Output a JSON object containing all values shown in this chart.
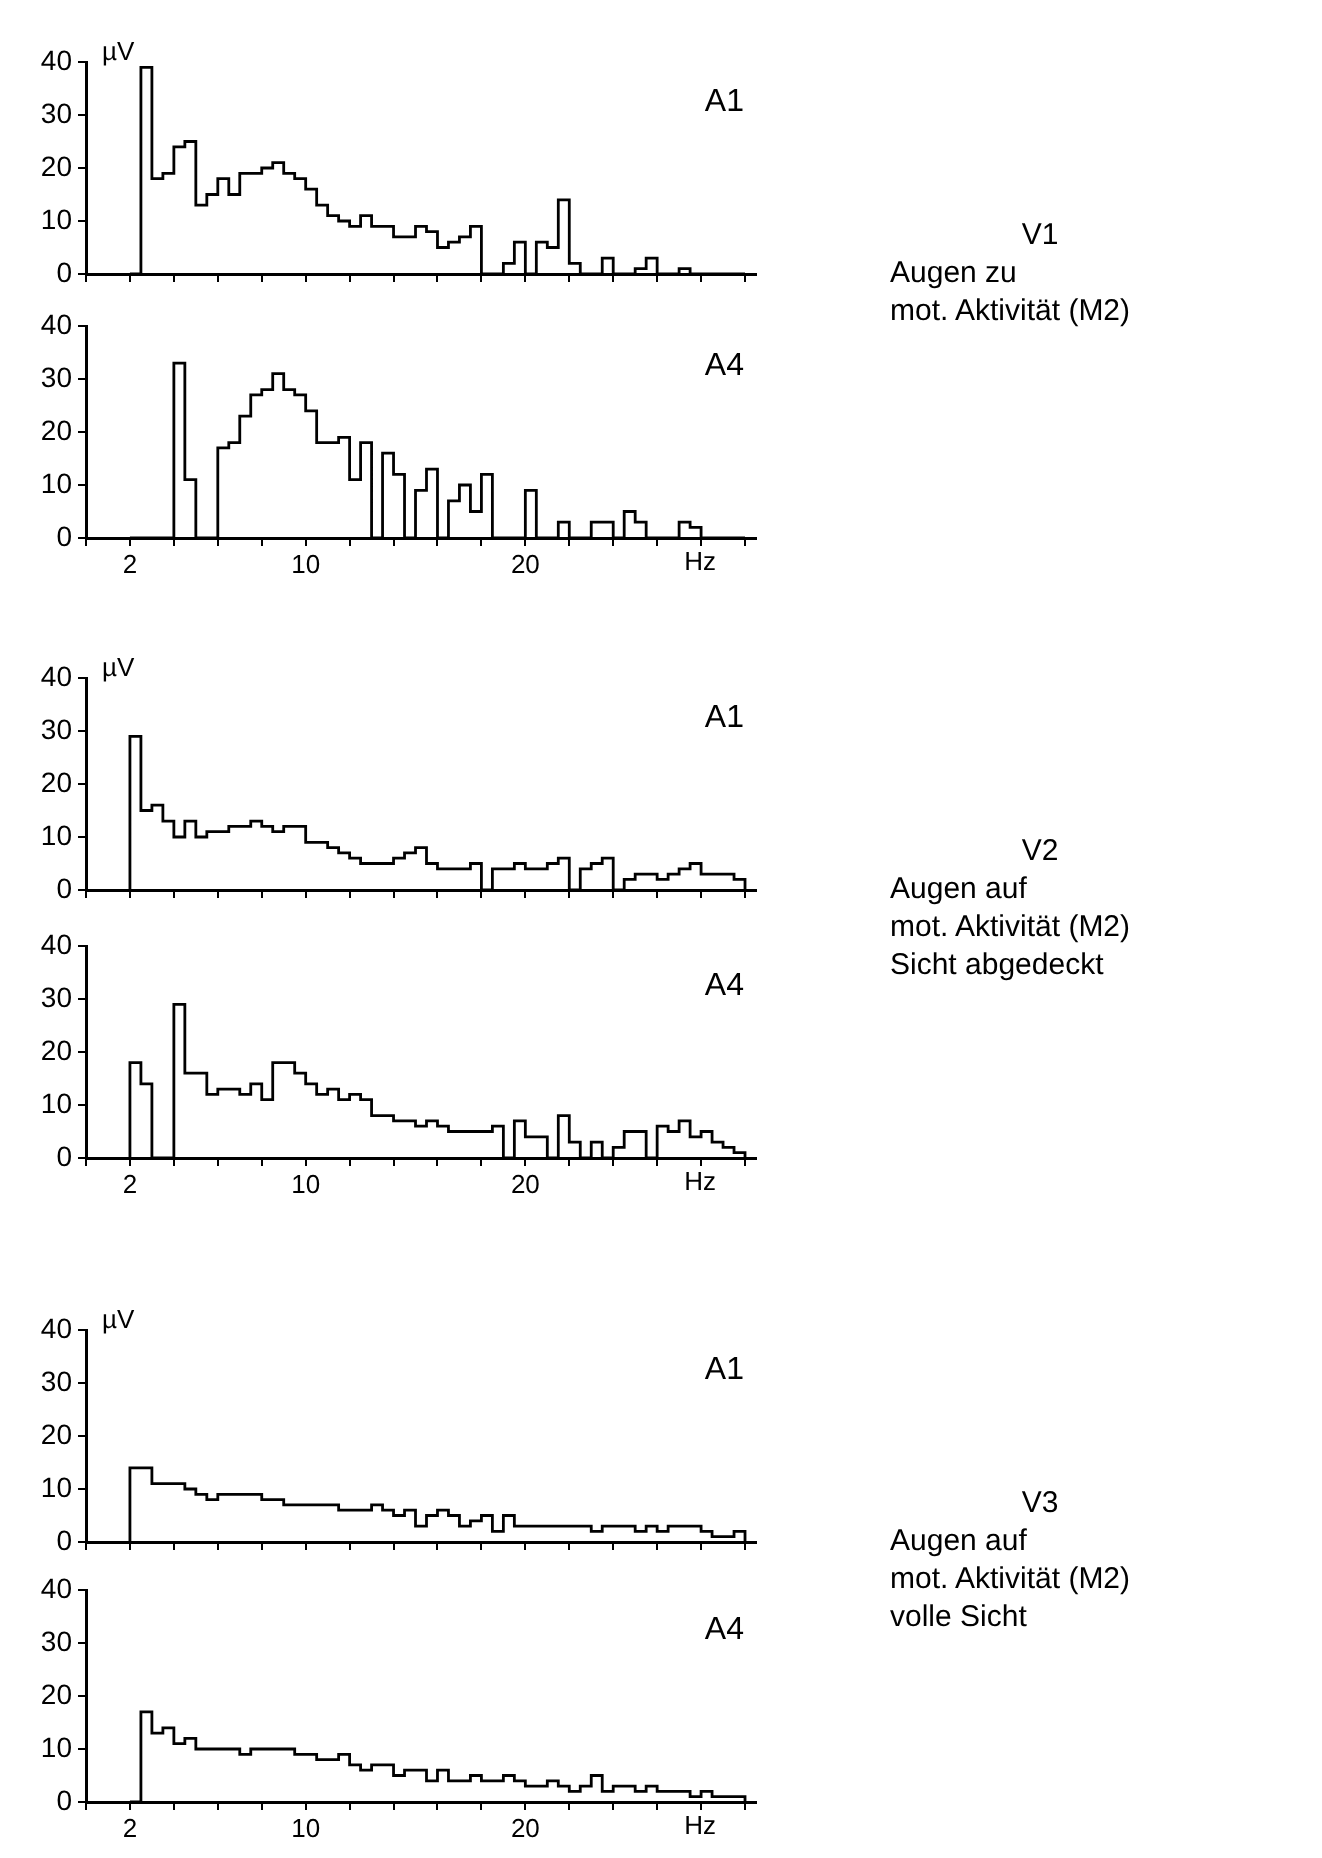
{
  "chart_data": [
    {
      "type": "histogram",
      "title": "A1",
      "ylabel": "µV",
      "annotations": [
        "V1",
        "Augen zu",
        "mot. Aktivität (M2)"
      ],
      "color": "#000000",
      "tick_labels": "y",
      "xlim": [
        0,
        30.5
      ],
      "ylim": [
        0,
        40
      ],
      "yticks": [
        0,
        10,
        20,
        30,
        40
      ],
      "xticks": [
        {
          "value": 0,
          "label": null
        },
        2,
        {
          "value": 4,
          "label": null
        },
        {
          "value": 6,
          "label": null
        },
        {
          "value": 8,
          "label": null
        },
        10,
        {
          "value": 12,
          "label": null
        },
        {
          "value": 14,
          "label": null
        },
        {
          "value": 16,
          "label": null
        },
        {
          "value": 18,
          "label": null
        },
        20,
        {
          "value": 22,
          "label": null
        },
        {
          "value": 24,
          "label": null
        },
        {
          "value": 26,
          "label": null
        },
        {
          "value": 28,
          "label": null
        },
        {
          "value": 30,
          "label": null
        }
      ],
      "bins": [
        2,
        2.5,
        3,
        3.5,
        4,
        4.5,
        5,
        5.5,
        6,
        6.5,
        7,
        7.5,
        8,
        8.5,
        9,
        9.5,
        10,
        10.5,
        11,
        11.5,
        12,
        12.5,
        13,
        13.5,
        14,
        14.5,
        15,
        15.5,
        16,
        16.5,
        17,
        17.5,
        18,
        18.5,
        19,
        19.5,
        20,
        20.5,
        21,
        21.5,
        22,
        22.5,
        23,
        23.5,
        24,
        24.5,
        25,
        25.5,
        26,
        26.5,
        27,
        27.5,
        28,
        28.5,
        29,
        29.5,
        30
      ],
      "values": [
        0,
        39,
        18,
        19,
        24,
        25,
        13,
        15,
        18,
        15,
        19,
        19,
        20,
        21,
        19,
        18,
        16,
        13,
        11,
        10,
        9,
        11,
        9,
        9,
        7,
        7,
        9,
        8,
        5,
        6,
        7,
        9,
        0,
        0,
        2,
        6,
        0,
        6,
        5,
        14,
        2,
        0,
        0,
        3,
        0,
        0,
        1,
        3,
        0,
        0,
        1,
        0,
        0,
        0,
        0,
        0
      ]
    },
    {
      "type": "histogram",
      "title": "A4",
      "xlabel": "Hz",
      "color": "#000000",
      "xlim": [
        0,
        30.5
      ],
      "ylim": [
        0,
        40
      ],
      "yticks": [
        0,
        10,
        20,
        30,
        40
      ],
      "xticks": [
        {
          "value": 0,
          "label": null
        },
        2,
        {
          "value": 4,
          "label": null
        },
        {
          "value": 6,
          "label": null
        },
        {
          "value": 8,
          "label": null
        },
        10,
        {
          "value": 12,
          "label": null
        },
        {
          "value": 14,
          "label": null
        },
        {
          "value": 16,
          "label": null
        },
        {
          "value": 18,
          "label": null
        },
        20,
        {
          "value": 22,
          "label": null
        },
        {
          "value": 24,
          "label": null
        },
        {
          "value": 26,
          "label": null
        },
        {
          "value": 28,
          "label": null
        },
        {
          "value": 30,
          "label": null
        }
      ],
      "bins": [
        2,
        2.5,
        3,
        3.5,
        4,
        4.5,
        5,
        5.5,
        6,
        6.5,
        7,
        7.5,
        8,
        8.5,
        9,
        9.5,
        10,
        10.5,
        11,
        11.5,
        12,
        12.5,
        13,
        13.5,
        14,
        14.5,
        15,
        15.5,
        16,
        16.5,
        17,
        17.5,
        18,
        18.5,
        19,
        19.5,
        20,
        20.5,
        21,
        21.5,
        22,
        22.5,
        23,
        23.5,
        24,
        24.5,
        25,
        25.5,
        26,
        26.5,
        27,
        27.5,
        28,
        28.5,
        29,
        29.5,
        30
      ],
      "values": [
        0,
        0,
        0,
        0,
        33,
        11,
        0,
        0,
        17,
        18,
        23,
        27,
        28,
        31,
        28,
        27,
        24,
        18,
        18,
        19,
        11,
        18,
        0,
        16,
        12,
        0,
        9,
        13,
        0,
        7,
        10,
        5,
        12,
        0,
        0,
        0,
        9,
        0,
        0,
        3,
        0,
        0,
        3,
        3,
        0,
        5,
        3,
        0,
        0,
        0,
        3,
        2,
        0,
        0,
        0,
        0
      ]
    },
    {
      "type": "histogram",
      "title": "A1",
      "ylabel": "µV",
      "annotations": [
        "V2",
        "Augen auf",
        "mot. Aktivität (M2)",
        "Sicht abgedeckt"
      ],
      "color": "#000000",
      "tick_labels": "y",
      "xlim": [
        0,
        30.5
      ],
      "ylim": [
        0,
        40
      ],
      "yticks": [
        0,
        10,
        20,
        30,
        40
      ],
      "xticks": [
        {
          "value": 0,
          "label": null
        },
        2,
        {
          "value": 4,
          "label": null
        },
        {
          "value": 6,
          "label": null
        },
        {
          "value": 8,
          "label": null
        },
        10,
        {
          "value": 12,
          "label": null
        },
        {
          "value": 14,
          "label": null
        },
        {
          "value": 16,
          "label": null
        },
        {
          "value": 18,
          "label": null
        },
        20,
        {
          "value": 22,
          "label": null
        },
        {
          "value": 24,
          "label": null
        },
        {
          "value": 26,
          "label": null
        },
        {
          "value": 28,
          "label": null
        },
        {
          "value": 30,
          "label": null
        }
      ],
      "bins": [
        2,
        2.5,
        3,
        3.5,
        4,
        4.5,
        5,
        5.5,
        6,
        6.5,
        7,
        7.5,
        8,
        8.5,
        9,
        9.5,
        10,
        10.5,
        11,
        11.5,
        12,
        12.5,
        13,
        13.5,
        14,
        14.5,
        15,
        15.5,
        16,
        16.5,
        17,
        17.5,
        18,
        18.5,
        19,
        19.5,
        20,
        20.5,
        21,
        21.5,
        22,
        22.5,
        23,
        23.5,
        24,
        24.5,
        25,
        25.5,
        26,
        26.5,
        27,
        27.5,
        28,
        28.5,
        29,
        29.5,
        30
      ],
      "values": [
        29,
        15,
        16,
        13,
        10,
        13,
        10,
        11,
        11,
        12,
        12,
        13,
        12,
        11,
        12,
        12,
        9,
        9,
        8,
        7,
        6,
        5,
        5,
        5,
        6,
        7,
        8,
        5,
        4,
        4,
        4,
        5,
        0,
        4,
        4,
        5,
        4,
        4,
        5,
        6,
        0,
        4,
        5,
        6,
        0,
        2,
        3,
        3,
        2,
        3,
        4,
        5,
        3,
        3,
        3,
        2
      ]
    },
    {
      "type": "histogram",
      "title": "A4",
      "xlabel": "Hz",
      "color": "#000000",
      "xlim": [
        0,
        30.5
      ],
      "ylim": [
        0,
        40
      ],
      "yticks": [
        0,
        10,
        20,
        30,
        40
      ],
      "xticks": [
        {
          "value": 0,
          "label": null
        },
        2,
        {
          "value": 4,
          "label": null
        },
        {
          "value": 6,
          "label": null
        },
        {
          "value": 8,
          "label": null
        },
        10,
        {
          "value": 12,
          "label": null
        },
        {
          "value": 14,
          "label": null
        },
        {
          "value": 16,
          "label": null
        },
        {
          "value": 18,
          "label": null
        },
        20,
        {
          "value": 22,
          "label": null
        },
        {
          "value": 24,
          "label": null
        },
        {
          "value": 26,
          "label": null
        },
        {
          "value": 28,
          "label": null
        },
        {
          "value": 30,
          "label": null
        }
      ],
      "bins": [
        2,
        2.5,
        3,
        3.5,
        4,
        4.5,
        5,
        5.5,
        6,
        6.5,
        7,
        7.5,
        8,
        8.5,
        9,
        9.5,
        10,
        10.5,
        11,
        11.5,
        12,
        12.5,
        13,
        13.5,
        14,
        14.5,
        15,
        15.5,
        16,
        16.5,
        17,
        17.5,
        18,
        18.5,
        19,
        19.5,
        20,
        20.5,
        21,
        21.5,
        22,
        22.5,
        23,
        23.5,
        24,
        24.5,
        25,
        25.5,
        26,
        26.5,
        27,
        27.5,
        28,
        28.5,
        29,
        29.5,
        30
      ],
      "values": [
        18,
        14,
        0,
        0,
        29,
        16,
        16,
        12,
        13,
        13,
        12,
        14,
        11,
        18,
        18,
        16,
        14,
        12,
        13,
        11,
        12,
        11,
        8,
        8,
        7,
        7,
        6,
        7,
        6,
        5,
        5,
        5,
        5,
        6,
        0,
        7,
        4,
        4,
        0,
        8,
        3,
        0,
        3,
        0,
        2,
        5,
        5,
        0,
        6,
        5,
        7,
        4,
        5,
        3,
        2,
        1
      ]
    },
    {
      "type": "histogram",
      "title": "A1",
      "ylabel": "µV",
      "annotations": [
        "V3",
        "Augen auf",
        "mot. Aktivität (M2)",
        "volle Sicht"
      ],
      "color": "#000000",
      "tick_labels": "y",
      "xlim": [
        0,
        30.5
      ],
      "ylim": [
        0,
        40
      ],
      "yticks": [
        0,
        10,
        20,
        30,
        40
      ],
      "xticks": [
        {
          "value": 0,
          "label": null
        },
        2,
        {
          "value": 4,
          "label": null
        },
        {
          "value": 6,
          "label": null
        },
        {
          "value": 8,
          "label": null
        },
        10,
        {
          "value": 12,
          "label": null
        },
        {
          "value": 14,
          "label": null
        },
        {
          "value": 16,
          "label": null
        },
        {
          "value": 18,
          "label": null
        },
        20,
        {
          "value": 22,
          "label": null
        },
        {
          "value": 24,
          "label": null
        },
        {
          "value": 26,
          "label": null
        },
        {
          "value": 28,
          "label": null
        },
        {
          "value": 30,
          "label": null
        }
      ],
      "bins": [
        2,
        2.5,
        3,
        3.5,
        4,
        4.5,
        5,
        5.5,
        6,
        6.5,
        7,
        7.5,
        8,
        8.5,
        9,
        9.5,
        10,
        10.5,
        11,
        11.5,
        12,
        12.5,
        13,
        13.5,
        14,
        14.5,
        15,
        15.5,
        16,
        16.5,
        17,
        17.5,
        18,
        18.5,
        19,
        19.5,
        20,
        20.5,
        21,
        21.5,
        22,
        22.5,
        23,
        23.5,
        24,
        24.5,
        25,
        25.5,
        26,
        26.5,
        27,
        27.5,
        28,
        28.5,
        29,
        29.5,
        30
      ],
      "values": [
        14,
        14,
        11,
        11,
        11,
        10,
        9,
        8,
        9,
        9,
        9,
        9,
        8,
        8,
        7,
        7,
        7,
        7,
        7,
        6,
        6,
        6,
        7,
        6,
        5,
        6,
        3,
        5,
        6,
        5,
        3,
        4,
        5,
        2,
        5,
        3,
        3,
        3,
        3,
        3,
        3,
        3,
        2,
        3,
        3,
        3,
        2,
        3,
        2,
        3,
        3,
        3,
        2,
        1,
        1,
        2
      ]
    },
    {
      "type": "histogram",
      "title": "A4",
      "xlabel": "Hz",
      "color": "#000000",
      "xlim": [
        0,
        30.5
      ],
      "ylim": [
        0,
        40
      ],
      "yticks": [
        0,
        10,
        20,
        30,
        40
      ],
      "xticks": [
        {
          "value": 0,
          "label": null
        },
        2,
        {
          "value": 4,
          "label": null
        },
        {
          "value": 6,
          "label": null
        },
        {
          "value": 8,
          "label": null
        },
        10,
        {
          "value": 12,
          "label": null
        },
        {
          "value": 14,
          "label": null
        },
        {
          "value": 16,
          "label": null
        },
        {
          "value": 18,
          "label": null
        },
        20,
        {
          "value": 22,
          "label": null
        },
        {
          "value": 24,
          "label": null
        },
        {
          "value": 26,
          "label": null
        },
        {
          "value": 28,
          "label": null
        },
        {
          "value": 30,
          "label": null
        }
      ],
      "bins": [
        2,
        2.5,
        3,
        3.5,
        4,
        4.5,
        5,
        5.5,
        6,
        6.5,
        7,
        7.5,
        8,
        8.5,
        9,
        9.5,
        10,
        10.5,
        11,
        11.5,
        12,
        12.5,
        13,
        13.5,
        14,
        14.5,
        15,
        15.5,
        16,
        16.5,
        17,
        17.5,
        18,
        18.5,
        19,
        19.5,
        20,
        20.5,
        21,
        21.5,
        22,
        22.5,
        23,
        23.5,
        24,
        24.5,
        25,
        25.5,
        26,
        26.5,
        27,
        27.5,
        28,
        28.5,
        29,
        29.5,
        30
      ],
      "values": [
        0,
        17,
        13,
        14,
        11,
        12,
        10,
        10,
        10,
        10,
        9,
        10,
        10,
        10,
        10,
        9,
        9,
        8,
        8,
        9,
        7,
        6,
        7,
        7,
        5,
        6,
        6,
        4,
        6,
        4,
        4,
        5,
        4,
        4,
        5,
        4,
        3,
        3,
        4,
        3,
        2,
        3,
        5,
        2,
        3,
        3,
        2,
        3,
        2,
        2,
        2,
        1,
        2,
        1,
        1,
        1
      ]
    }
  ]
}
